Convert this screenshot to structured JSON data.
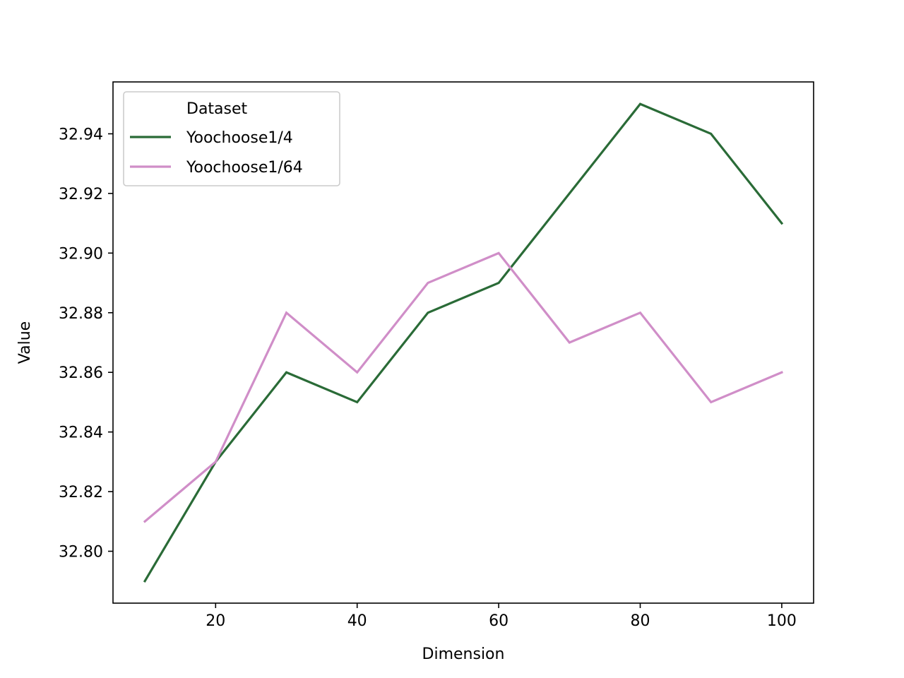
{
  "chart_data": {
    "type": "line",
    "title": "",
    "xlabel": "Dimension",
    "ylabel": "Value",
    "x": [
      10,
      20,
      30,
      40,
      50,
      60,
      70,
      80,
      90,
      100
    ],
    "xlim": [
      5.5,
      104.5
    ],
    "ylim": [
      32.7826,
      32.9574
    ],
    "xticks": [
      20,
      40,
      60,
      80,
      100
    ],
    "xtick_labels": [
      "20",
      "40",
      "60",
      "80",
      "100"
    ],
    "yticks": [
      32.8,
      32.82,
      32.84,
      32.86,
      32.88,
      32.9,
      32.92,
      32.94
    ],
    "ytick_labels": [
      "32.80",
      "32.82",
      "32.84",
      "32.86",
      "32.88",
      "32.90",
      "32.92",
      "32.94"
    ],
    "grid": false,
    "legend": {
      "title": "Dataset",
      "placement": "top-left"
    },
    "series": [
      {
        "name": "Yoochoose1/4",
        "color": "#2a6b37",
        "values": [
          32.79,
          32.83,
          32.86,
          32.85,
          32.88,
          32.89,
          32.92,
          32.95,
          32.94,
          32.91
        ]
      },
      {
        "name": "Yoochoose1/64",
        "color": "#d08ec8",
        "values": [
          32.81,
          32.83,
          32.88,
          32.86,
          32.89,
          32.9,
          32.87,
          32.88,
          32.85,
          32.86
        ]
      }
    ]
  }
}
